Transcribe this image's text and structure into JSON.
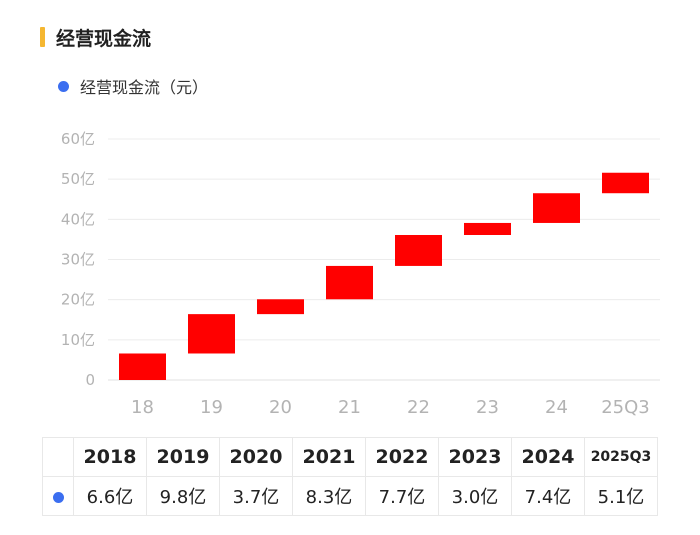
{
  "header": {
    "title": "经营现金流"
  },
  "legend": {
    "label": "经营现金流（元）",
    "color": "#3b6ef0"
  },
  "chart_data": {
    "type": "bar",
    "subtype": "waterfall",
    "categories": [
      "18",
      "19",
      "20",
      "21",
      "22",
      "23",
      "24",
      "25Q3"
    ],
    "values": [
      6.6,
      9.8,
      3.7,
      8.3,
      7.7,
      3.0,
      7.4,
      5.1
    ],
    "bar_ranges": [
      [
        0,
        6.6
      ],
      [
        6.6,
        16.4
      ],
      [
        16.4,
        20.1
      ],
      [
        20.1,
        28.4
      ],
      [
        28.4,
        36.1
      ],
      [
        36.1,
        39.1
      ],
      [
        39.1,
        46.5
      ],
      [
        46.5,
        51.6
      ]
    ],
    "yticks": [
      "0",
      "10亿",
      "20亿",
      "30亿",
      "40亿",
      "50亿",
      "60亿"
    ],
    "ylim": [
      0,
      60
    ],
    "bar_color": "#ff0000",
    "grid": true,
    "legend_position": "top-left"
  },
  "table": {
    "years": [
      "2018",
      "2019",
      "2020",
      "2021",
      "2022",
      "2023",
      "2024",
      "2025Q3"
    ],
    "values": [
      "6.6亿",
      "9.8亿",
      "3.7亿",
      "8.3亿",
      "7.7亿",
      "3.0亿",
      "7.4亿",
      "5.1亿"
    ]
  }
}
